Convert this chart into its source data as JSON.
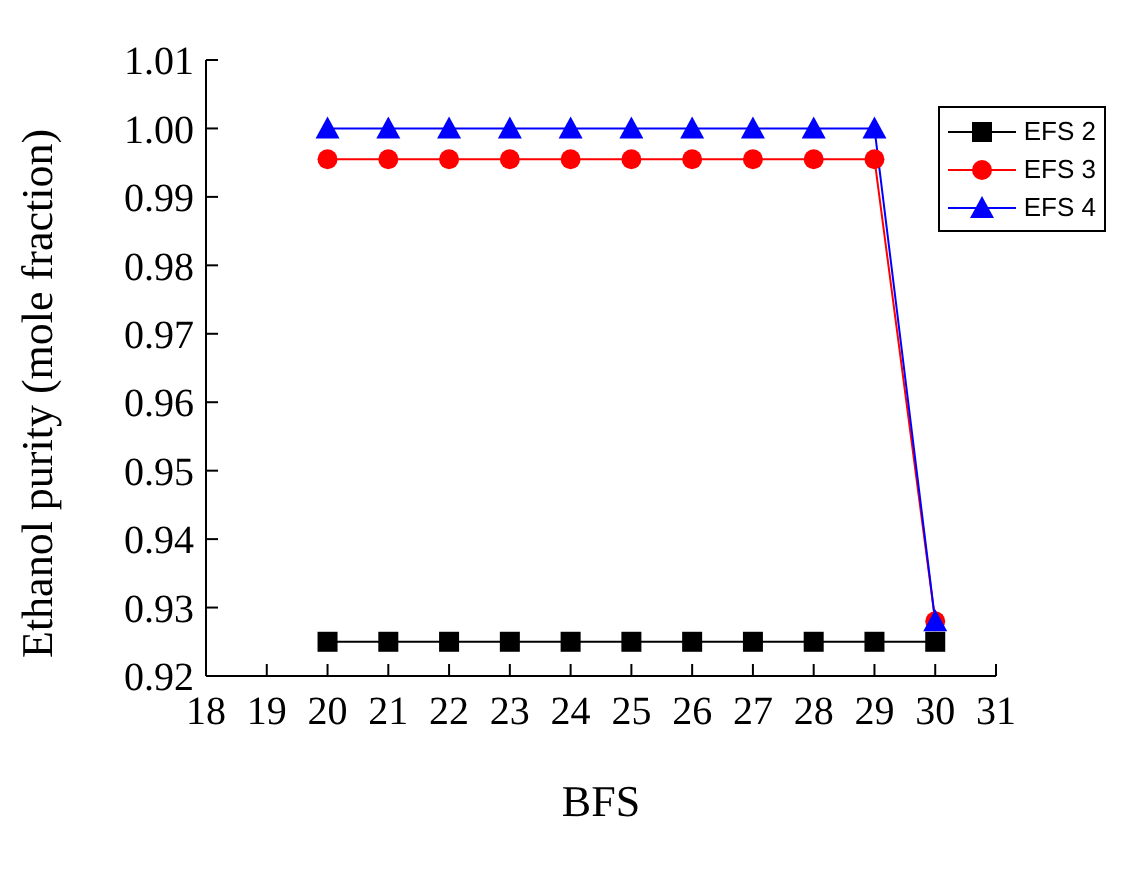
{
  "chart_data": {
    "type": "line",
    "xlabel": "BFS",
    "ylabel": "Ethanol purity (mole fraction)",
    "x": [
      20,
      21,
      22,
      23,
      24,
      25,
      26,
      27,
      28,
      29,
      30
    ],
    "series": [
      {
        "name": "EFS 2",
        "color": "#000000",
        "marker": "square",
        "values": [
          0.925,
          0.925,
          0.925,
          0.925,
          0.925,
          0.925,
          0.925,
          0.925,
          0.925,
          0.925,
          0.925
        ]
      },
      {
        "name": "EFS 3",
        "color": "#ff0000",
        "marker": "circle",
        "values": [
          0.9955,
          0.9955,
          0.9955,
          0.9955,
          0.9955,
          0.9955,
          0.9955,
          0.9955,
          0.9955,
          0.9955,
          0.928
        ]
      },
      {
        "name": "EFS 4",
        "color": "#0000ff",
        "marker": "triangle",
        "values": [
          1.0,
          1.0,
          1.0,
          1.0,
          1.0,
          1.0,
          1.0,
          1.0,
          1.0,
          1.0,
          0.928
        ]
      }
    ],
    "xlim": [
      18,
      31
    ],
    "xticks": [
      18,
      19,
      20,
      21,
      22,
      23,
      24,
      25,
      26,
      27,
      28,
      29,
      30,
      31
    ],
    "ylim": [
      0.92,
      1.01
    ],
    "yticks": [
      0.92,
      0.93,
      0.94,
      0.95,
      0.96,
      0.97,
      0.98,
      0.99,
      {
        "value": 1.0,
        "label": "1.00"
      },
      1.01
    ],
    "grid": false,
    "legend": "top right"
  }
}
